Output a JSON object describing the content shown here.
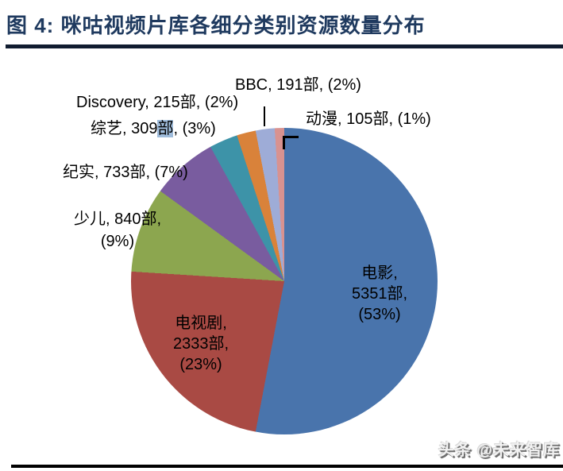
{
  "header": {
    "title": "图 4: 咪咕视频片库各细分类别资源数量分布"
  },
  "footer": {
    "watermark": "头条 @未来智库"
  },
  "colors": {
    "title_text": "#1F3A5F",
    "title_rule": "#111C30",
    "highlight": "#9FBCDB",
    "leader_line": "#000000",
    "bottom_rule": "#000000"
  },
  "chart_data": {
    "type": "pie",
    "title": "咪咕视频片库各细分类别资源数量分布",
    "unit": "部",
    "start_angle_deg": 0,
    "direction": "clockwise",
    "legend_position": "none",
    "categories": [
      "电影",
      "电视剧",
      "少儿",
      "纪实",
      "综艺",
      "Discovery",
      "BBC",
      "动漫"
    ],
    "values": [
      5351,
      2333,
      840,
      733,
      309,
      215,
      191,
      105
    ],
    "slices": [
      {
        "name": "电影",
        "count": 5351,
        "percent": 53,
        "color": "#4974AC",
        "label": "电影, 5351部, (53%)"
      },
      {
        "name": "电视剧",
        "count": 2333,
        "percent": 23,
        "color": "#A94A44",
        "label": "电视剧, 2333部, (23%)"
      },
      {
        "name": "少儿",
        "count": 840,
        "percent": 9,
        "color": "#8CA64F",
        "label": "少儿, 840部, (9%)"
      },
      {
        "name": "纪实",
        "count": 733,
        "percent": 7,
        "color": "#795C9F",
        "label": "纪实, 733部, (7%)"
      },
      {
        "name": "综艺",
        "count": 309,
        "percent": 3,
        "color": "#3D93A8",
        "label": "综艺, 309部, (3%)"
      },
      {
        "name": "Discovery",
        "count": 215,
        "percent": 2,
        "color": "#D9823A",
        "label": "Discovery, 215部, (2%)"
      },
      {
        "name": "BBC",
        "count": 191,
        "percent": 2,
        "color": "#9EACD7",
        "label": "BBC, 191部, (2%)"
      },
      {
        "name": "动漫",
        "count": 105,
        "percent": 1,
        "color": "#D89290",
        "label": "动漫, 105部, (1%)"
      }
    ]
  },
  "labels": {
    "bbc": "BBC, 191部, (2%)",
    "discovery": "Discovery, 215部, (2%)",
    "variety": {
      "prefix": "综艺, 309",
      "highlight": "部",
      "suffix": ", (3%)"
    },
    "anime": "动漫, 105部, (1%)",
    "documentary": "纪实, 733部, (7%)",
    "children": {
      "line1": "少儿, 840部,",
      "line2": "(9%)"
    },
    "tv": {
      "line1": "电视剧,",
      "line2": "2333部,",
      "line3": "(23%)"
    },
    "movie": {
      "line1": "电影,",
      "line2": "5351部,",
      "line3": "(53%)"
    }
  }
}
